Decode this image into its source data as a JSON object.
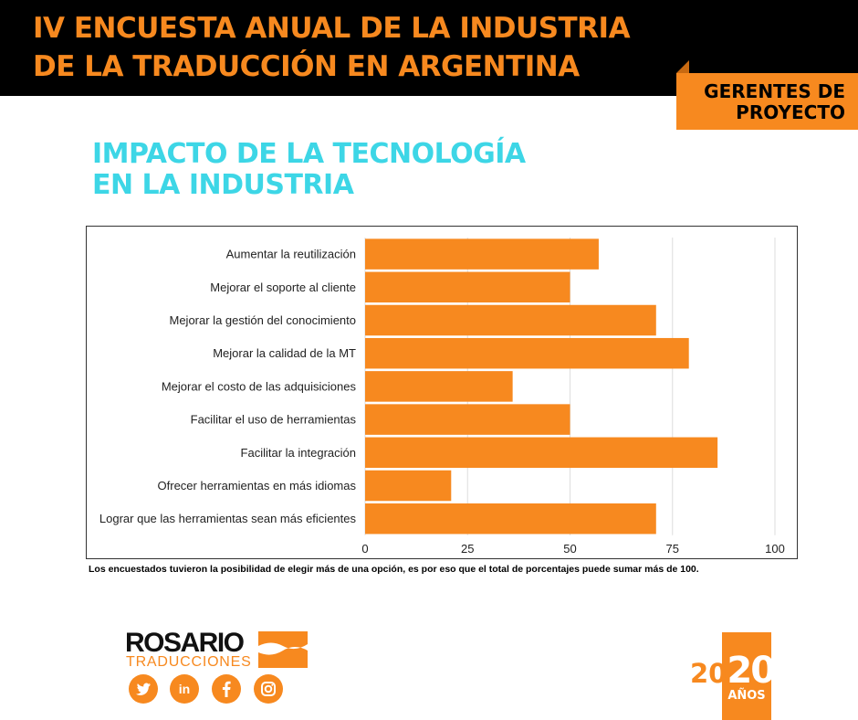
{
  "header": {
    "title_line1": "IV ENCUESTA ANUAL DE LA INDUSTRIA",
    "title_line2": "DE LA TRADUCCIÓN EN ARGENTINA",
    "badge_line1": "GERENTES DE",
    "badge_line2": "PROYECTO"
  },
  "section": {
    "title_line1": "IMPACTO DE LA TECNOLOGÍA",
    "title_line2": "EN LA INDUSTRIA"
  },
  "chart_data": {
    "type": "bar",
    "orientation": "horizontal",
    "title": "",
    "xlabel": "",
    "ylabel": "",
    "categories": [
      "Aumentar la reutilización",
      "Mejorar el soporte al cliente",
      "Mejorar la gestión del conocimiento",
      "Mejorar la calidad de la MT",
      "Mejorar el costo de las adquisiciones",
      "Facilitar el uso de herramientas",
      "Facilitar la integración",
      "Ofrecer herramientas en más idiomas",
      "Lograr que las herramientas sean más eficientes"
    ],
    "values": [
      57,
      50,
      71,
      79,
      36,
      50,
      86,
      21,
      71
    ],
    "xlim": [
      0,
      100
    ],
    "xticks": [
      0,
      25,
      50,
      75,
      100
    ],
    "grid": true,
    "bar_color": "#f7891f"
  },
  "footnote": "Los encuestados tuvieron la posibilidad de elegir más de una opción, es por eso que el total de porcentajes puede sumar más de 100.",
  "brand": {
    "name": "ROSARIO",
    "subtitle": "TRADUCCIONES",
    "social_icons": [
      "twitter-icon",
      "linkedin-icon",
      "facebook-icon",
      "instagram-icon"
    ],
    "social_labels": {
      "linkedin": "in"
    }
  },
  "anniversary": {
    "number_part1": "20",
    "number_part2": "20",
    "word": "AÑOS"
  },
  "colors": {
    "accent_orange": "#f7891f",
    "heading_cyan": "#3dd6e6",
    "header_bg": "#000000"
  }
}
